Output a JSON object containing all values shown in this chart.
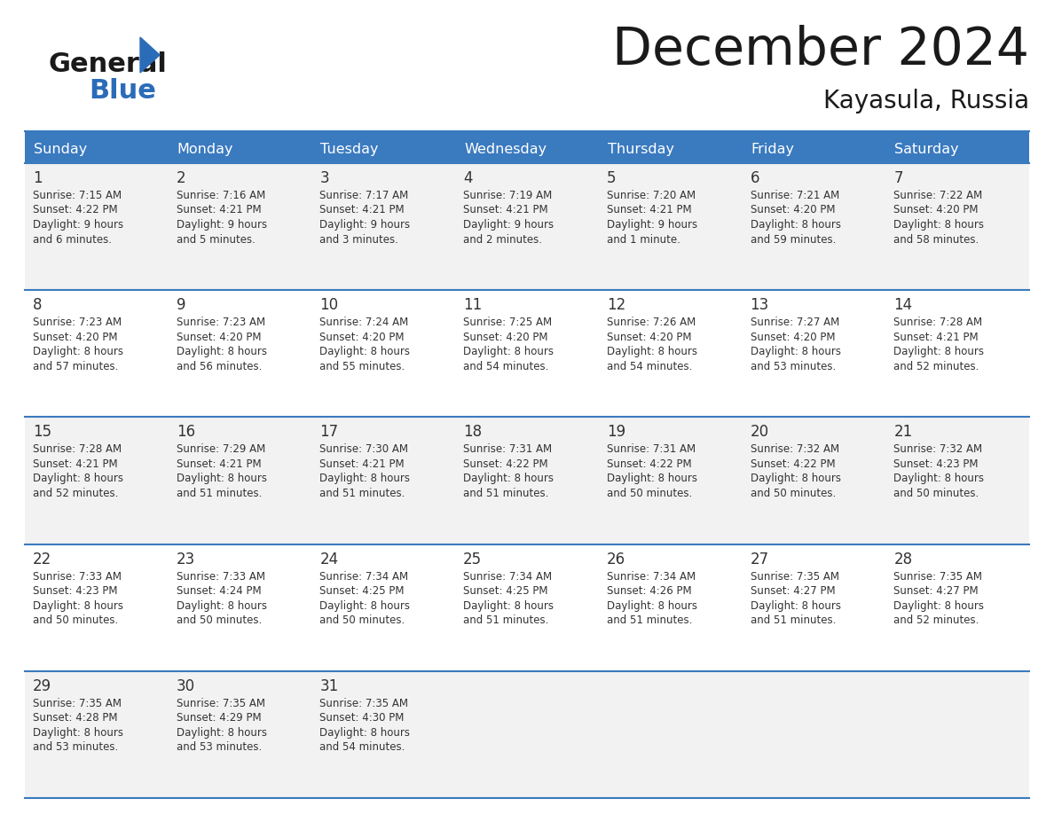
{
  "title": "December 2024",
  "subtitle": "Kayasula, Russia",
  "header_color": "#3a7abf",
  "header_text_color": "#ffffff",
  "cell_bg_even": "#f2f2f2",
  "cell_bg_odd": "#ffffff",
  "day_headers": [
    "Sunday",
    "Monday",
    "Tuesday",
    "Wednesday",
    "Thursday",
    "Friday",
    "Saturday"
  ],
  "weeks": [
    [
      {
        "day": 1,
        "sunrise": "7:15 AM",
        "sunset": "4:22 PM",
        "daylight_h": "9 hours",
        "daylight_m": "and 6 minutes."
      },
      {
        "day": 2,
        "sunrise": "7:16 AM",
        "sunset": "4:21 PM",
        "daylight_h": "9 hours",
        "daylight_m": "and 5 minutes."
      },
      {
        "day": 3,
        "sunrise": "7:17 AM",
        "sunset": "4:21 PM",
        "daylight_h": "9 hours",
        "daylight_m": "and 3 minutes."
      },
      {
        "day": 4,
        "sunrise": "7:19 AM",
        "sunset": "4:21 PM",
        "daylight_h": "9 hours",
        "daylight_m": "and 2 minutes."
      },
      {
        "day": 5,
        "sunrise": "7:20 AM",
        "sunset": "4:21 PM",
        "daylight_h": "9 hours",
        "daylight_m": "and 1 minute."
      },
      {
        "day": 6,
        "sunrise": "7:21 AM",
        "sunset": "4:20 PM",
        "daylight_h": "8 hours",
        "daylight_m": "and 59 minutes."
      },
      {
        "day": 7,
        "sunrise": "7:22 AM",
        "sunset": "4:20 PM",
        "daylight_h": "8 hours",
        "daylight_m": "and 58 minutes."
      }
    ],
    [
      {
        "day": 8,
        "sunrise": "7:23 AM",
        "sunset": "4:20 PM",
        "daylight_h": "8 hours",
        "daylight_m": "and 57 minutes."
      },
      {
        "day": 9,
        "sunrise": "7:23 AM",
        "sunset": "4:20 PM",
        "daylight_h": "8 hours",
        "daylight_m": "and 56 minutes."
      },
      {
        "day": 10,
        "sunrise": "7:24 AM",
        "sunset": "4:20 PM",
        "daylight_h": "8 hours",
        "daylight_m": "and 55 minutes."
      },
      {
        "day": 11,
        "sunrise": "7:25 AM",
        "sunset": "4:20 PM",
        "daylight_h": "8 hours",
        "daylight_m": "and 54 minutes."
      },
      {
        "day": 12,
        "sunrise": "7:26 AM",
        "sunset": "4:20 PM",
        "daylight_h": "8 hours",
        "daylight_m": "and 54 minutes."
      },
      {
        "day": 13,
        "sunrise": "7:27 AM",
        "sunset": "4:20 PM",
        "daylight_h": "8 hours",
        "daylight_m": "and 53 minutes."
      },
      {
        "day": 14,
        "sunrise": "7:28 AM",
        "sunset": "4:21 PM",
        "daylight_h": "8 hours",
        "daylight_m": "and 52 minutes."
      }
    ],
    [
      {
        "day": 15,
        "sunrise": "7:28 AM",
        "sunset": "4:21 PM",
        "daylight_h": "8 hours",
        "daylight_m": "and 52 minutes."
      },
      {
        "day": 16,
        "sunrise": "7:29 AM",
        "sunset": "4:21 PM",
        "daylight_h": "8 hours",
        "daylight_m": "and 51 minutes."
      },
      {
        "day": 17,
        "sunrise": "7:30 AM",
        "sunset": "4:21 PM",
        "daylight_h": "8 hours",
        "daylight_m": "and 51 minutes."
      },
      {
        "day": 18,
        "sunrise": "7:31 AM",
        "sunset": "4:22 PM",
        "daylight_h": "8 hours",
        "daylight_m": "and 51 minutes."
      },
      {
        "day": 19,
        "sunrise": "7:31 AM",
        "sunset": "4:22 PM",
        "daylight_h": "8 hours",
        "daylight_m": "and 50 minutes."
      },
      {
        "day": 20,
        "sunrise": "7:32 AM",
        "sunset": "4:22 PM",
        "daylight_h": "8 hours",
        "daylight_m": "and 50 minutes."
      },
      {
        "day": 21,
        "sunrise": "7:32 AM",
        "sunset": "4:23 PM",
        "daylight_h": "8 hours",
        "daylight_m": "and 50 minutes."
      }
    ],
    [
      {
        "day": 22,
        "sunrise": "7:33 AM",
        "sunset": "4:23 PM",
        "daylight_h": "8 hours",
        "daylight_m": "and 50 minutes."
      },
      {
        "day": 23,
        "sunrise": "7:33 AM",
        "sunset": "4:24 PM",
        "daylight_h": "8 hours",
        "daylight_m": "and 50 minutes."
      },
      {
        "day": 24,
        "sunrise": "7:34 AM",
        "sunset": "4:25 PM",
        "daylight_h": "8 hours",
        "daylight_m": "and 50 minutes."
      },
      {
        "day": 25,
        "sunrise": "7:34 AM",
        "sunset": "4:25 PM",
        "daylight_h": "8 hours",
        "daylight_m": "and 51 minutes."
      },
      {
        "day": 26,
        "sunrise": "7:34 AM",
        "sunset": "4:26 PM",
        "daylight_h": "8 hours",
        "daylight_m": "and 51 minutes."
      },
      {
        "day": 27,
        "sunrise": "7:35 AM",
        "sunset": "4:27 PM",
        "daylight_h": "8 hours",
        "daylight_m": "and 51 minutes."
      },
      {
        "day": 28,
        "sunrise": "7:35 AM",
        "sunset": "4:27 PM",
        "daylight_h": "8 hours",
        "daylight_m": "and 52 minutes."
      }
    ],
    [
      {
        "day": 29,
        "sunrise": "7:35 AM",
        "sunset": "4:28 PM",
        "daylight_h": "8 hours",
        "daylight_m": "and 53 minutes."
      },
      {
        "day": 30,
        "sunrise": "7:35 AM",
        "sunset": "4:29 PM",
        "daylight_h": "8 hours",
        "daylight_m": "and 53 minutes."
      },
      {
        "day": 31,
        "sunrise": "7:35 AM",
        "sunset": "4:30 PM",
        "daylight_h": "8 hours",
        "daylight_m": "and 54 minutes."
      },
      null,
      null,
      null,
      null
    ]
  ],
  "logo_color_general": "#1a1a1a",
  "logo_color_blue": "#2b6cb8",
  "text_color": "#333333",
  "line_color": "#3a7abf"
}
